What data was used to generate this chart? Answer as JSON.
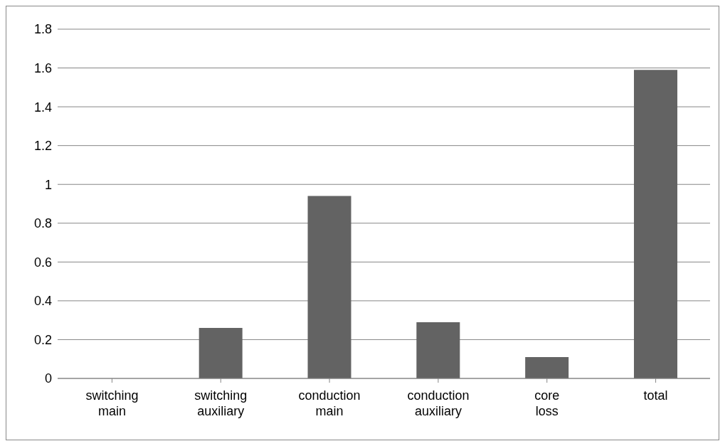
{
  "chart_data": {
    "type": "bar",
    "categories": [
      "switching main",
      "switching auxiliary",
      "conduction main",
      "conduction auxiliary",
      "core loss",
      "total"
    ],
    "values": [
      0,
      0.26,
      0.94,
      0.29,
      0.11,
      1.59
    ],
    "color": "#636363",
    "ylim": [
      0,
      1.8
    ],
    "yticks": [
      0,
      0.2,
      0.4,
      0.6,
      0.8,
      1,
      1.2,
      1.4,
      1.6,
      1.8
    ],
    "grid": "y",
    "legend": false
  }
}
